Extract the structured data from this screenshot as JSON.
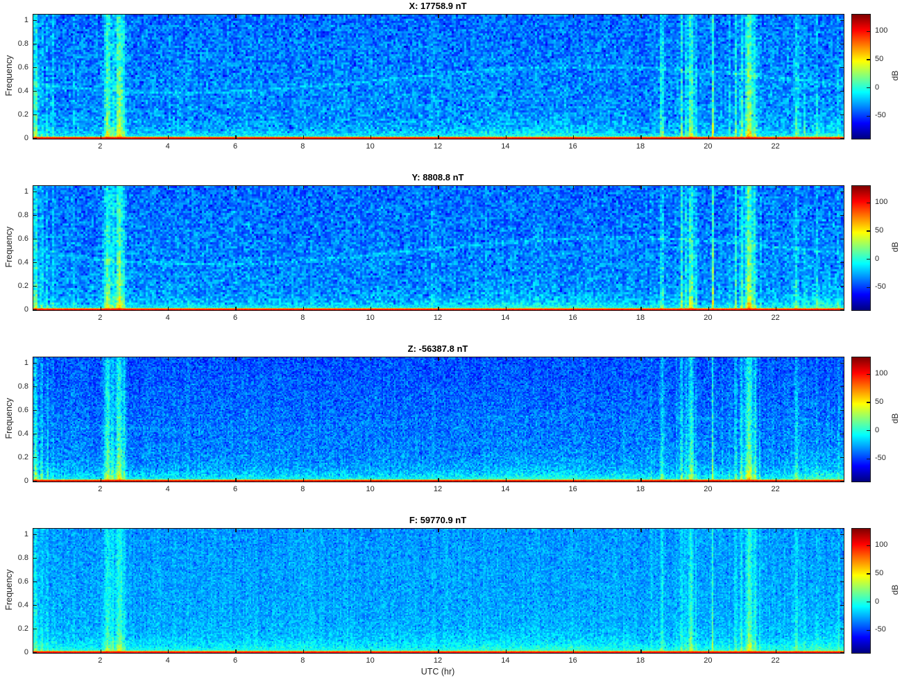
{
  "figure": {
    "bg": "#ffffff",
    "axis_color": "#141414",
    "text_color": "#262626"
  },
  "chart_data": {
    "type": "heatmap",
    "description": "Four stacked day-long spectrograms (power spectral density, jet colormap) of magnetometer components X, Y, Z and total field F; mean field value of each component shown in its title",
    "x": {
      "label": "UTC (hr)",
      "range": [
        0,
        24
      ],
      "ticks": [
        2,
        4,
        6,
        8,
        10,
        12,
        14,
        16,
        18,
        20,
        22
      ]
    },
    "y": {
      "label": "Frequency",
      "range": [
        0,
        1.05
      ],
      "ticks": [
        0,
        0.2,
        0.4,
        0.6,
        0.8,
        1
      ]
    },
    "colorbar": {
      "label": "dB",
      "ticks": [
        100,
        50,
        0,
        -50
      ],
      "clim": [
        -90,
        130
      ],
      "colormap": "jet",
      "stops": [
        [
          0,
          "#00007f"
        ],
        [
          0.125,
          "#0000ff"
        ],
        [
          0.375,
          "#00ffff"
        ],
        [
          0.625,
          "#ffff00"
        ],
        [
          0.875,
          "#ff0000"
        ],
        [
          1,
          "#7f0000"
        ]
      ]
    },
    "subplots": [
      {
        "id": "X",
        "title": "X: 17758.9 nT",
        "value_nT": 17758.9,
        "render": {
          "base": -30,
          "topgrad": -8,
          "lowboost": 36,
          "lowdecay": 0.045,
          "spread": 17,
          "cell": 3,
          "eventScale": 1.0,
          "trace": {
            "amp": 13,
            "mean": 0.5,
            "osc": 0.11,
            "peakHour": 16.5
          }
        }
      },
      {
        "id": "Y",
        "title": "Y: 8808.8 nT",
        "value_nT": 8808.8,
        "render": {
          "base": -30,
          "topgrad": -8,
          "lowboost": 36,
          "lowdecay": 0.05,
          "spread": 17,
          "cell": 3,
          "eventScale": 1.0,
          "trace": {
            "amp": 13,
            "mean": 0.5,
            "osc": 0.11,
            "peakHour": 17.2
          }
        }
      },
      {
        "id": "Z",
        "title": "Z: -56387.8 nT",
        "value_nT": -56387.8,
        "render": {
          "base": -30,
          "topgrad": -14,
          "lowboost": 36,
          "lowdecay": 0.06,
          "spread": 16,
          "cell": 2,
          "eventScale": 0.9,
          "trace": {
            "amp": 5,
            "mean": 0.5,
            "osc": 0.06,
            "peakHour": 16.5
          }
        }
      },
      {
        "id": "F",
        "title": "F: 59770.9 nT",
        "value_nT": 59770.9,
        "render": {
          "base": -24,
          "topgrad": -5,
          "lowboost": 32,
          "lowdecay": 0.075,
          "spread": 12,
          "cell": 2,
          "eventScale": 0.62,
          "trace": {
            "amp": 0,
            "mean": 0.5,
            "osc": 0.06,
            "peakHour": 16.5
          }
        }
      }
    ],
    "events": [
      [
        0.07,
        0.06,
        55
      ],
      [
        0.25,
        0.035,
        38
      ],
      [
        0.42,
        0.03,
        30
      ],
      [
        0.58,
        0.025,
        22
      ],
      [
        1.2,
        0.02,
        12
      ],
      [
        2.2,
        0.09,
        62
      ],
      [
        2.35,
        0.04,
        40
      ],
      [
        2.55,
        0.11,
        72
      ],
      [
        2.7,
        0.03,
        30
      ],
      [
        4.6,
        0.02,
        10
      ],
      [
        6.3,
        0.02,
        12
      ],
      [
        9.3,
        0.02,
        10
      ],
      [
        11.8,
        0.02,
        8
      ],
      [
        13.4,
        0.02,
        10
      ],
      [
        17.5,
        0.02,
        14
      ],
      [
        18.3,
        0.025,
        20
      ],
      [
        18.62,
        0.06,
        40
      ],
      [
        19.05,
        0.02,
        16
      ],
      [
        19.2,
        0.04,
        48
      ],
      [
        19.32,
        0.03,
        34
      ],
      [
        19.48,
        0.08,
        62
      ],
      [
        19.63,
        0.025,
        30
      ],
      [
        20.12,
        0.025,
        68
      ],
      [
        20.4,
        0.02,
        14
      ],
      [
        20.62,
        0.02,
        18
      ],
      [
        20.8,
        0.035,
        44
      ],
      [
        20.97,
        0.04,
        52
      ],
      [
        21.2,
        0.11,
        78
      ],
      [
        21.38,
        0.04,
        48
      ],
      [
        21.52,
        0.025,
        26
      ],
      [
        21.9,
        0.02,
        16
      ],
      [
        22.25,
        0.02,
        12
      ],
      [
        22.6,
        0.06,
        34
      ],
      [
        22.85,
        0.025,
        16
      ],
      [
        23.2,
        0.03,
        22
      ],
      [
        23.55,
        0.02,
        12
      ],
      [
        23.85,
        0.03,
        26
      ]
    ],
    "haze": [
      [
        15,
        2.2,
        13,
        0.13
      ],
      [
        23.4,
        0.9,
        15,
        0.18
      ]
    ],
    "seed": 42
  }
}
